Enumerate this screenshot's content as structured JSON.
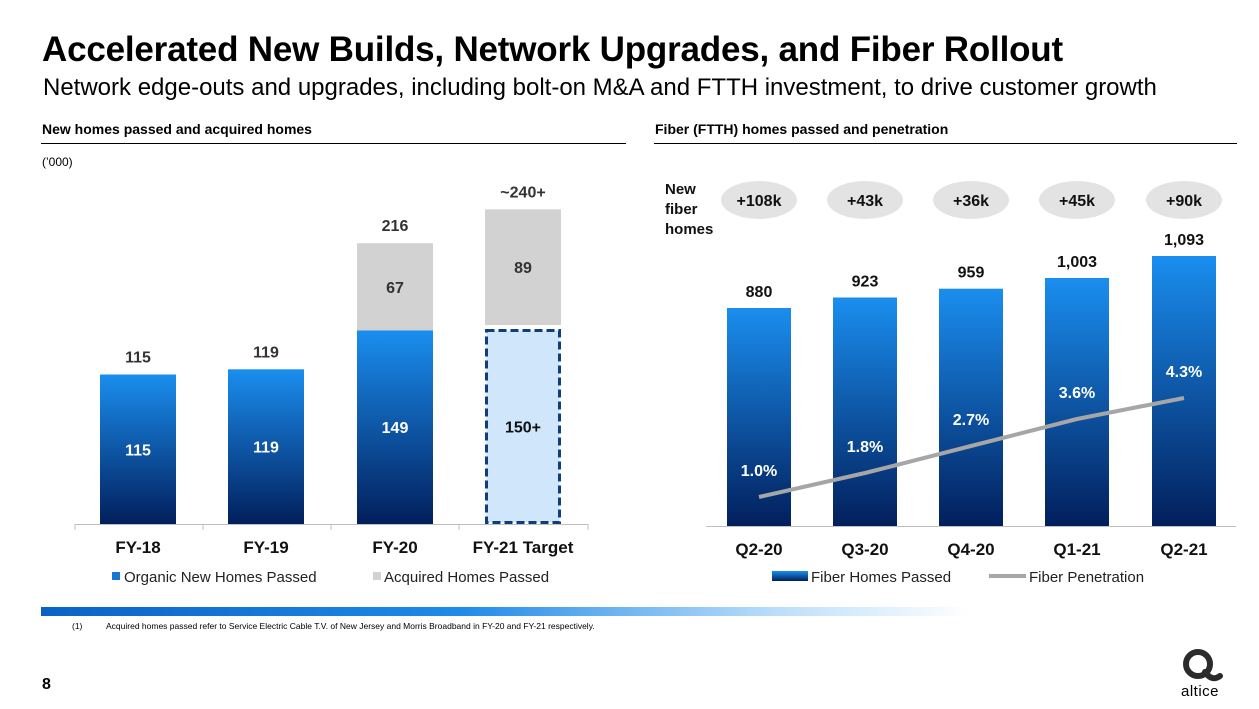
{
  "header": {
    "title": "Accelerated New Builds, Network Upgrades, and Fiber Rollout",
    "subtitle": "Network edge-outs and upgrades, including bolt-on M&A and FTTH investment, to drive customer growth"
  },
  "left_section": {
    "title": "New homes passed and acquired homes",
    "unit": "(’000)"
  },
  "right_section": {
    "title": "Fiber (FTTH) homes passed and penetration",
    "side_label": [
      "New",
      "fiber",
      "homes"
    ]
  },
  "footnote": {
    "number": "(1)",
    "text": "Acquired homes passed refer to Service Electric Cable T.V. of New Jersey and Morris Broadband in FY-20 and FY-21 respectively."
  },
  "page_number": "8",
  "logo": {
    "name": "altice",
    "text": "altice"
  },
  "colors": {
    "blue_top": "#1a8eef",
    "blue_bottom": "#021f5c",
    "grey": "#d2d2d2",
    "target_fill": "#cfe6fb",
    "target_border": "#0e3e7c",
    "line": "#a6a6a6",
    "bubble": "#e3e3e3"
  },
  "chart_data": [
    {
      "type": "bar",
      "stacked": true,
      "categories": [
        "FY-18",
        "FY-19",
        "FY-20",
        "FY-21 Target"
      ],
      "series": [
        {
          "name": "Organic New Homes Passed",
          "values": [
            115,
            119,
            149,
            150
          ],
          "labels": [
            "115",
            "119",
            "149",
            "150+"
          ]
        },
        {
          "name": "Acquired Homes Passed",
          "values": [
            0,
            0,
            67,
            89
          ],
          "labels": [
            "",
            "",
            "67",
            "89"
          ]
        }
      ],
      "totals": [
        "115",
        "119",
        "216",
        "~240+"
      ],
      "target_category_index": 3,
      "ylim": [
        0,
        240
      ],
      "legend": "bottom"
    },
    {
      "type": "bar",
      "categories": [
        "Q2-20",
        "Q3-20",
        "Q4-20",
        "Q1-21",
        "Q2-21"
      ],
      "series": [
        {
          "name": "Fiber Homes Passed",
          "type": "bar",
          "values": [
            880,
            923,
            959,
            1003,
            1093
          ],
          "labels": [
            "880",
            "923",
            "959",
            "1,003",
            "1,093"
          ]
        },
        {
          "name": "Fiber Penetration",
          "type": "line",
          "values": [
            1.0,
            1.8,
            2.7,
            3.6,
            4.3
          ],
          "labels": [
            "1.0%",
            "1.8%",
            "2.7%",
            "3.6%",
            "4.3%"
          ]
        }
      ],
      "increments": [
        "+108k",
        "+43k",
        "+36k",
        "+45k",
        "+90k"
      ],
      "legend": "bottom"
    }
  ]
}
